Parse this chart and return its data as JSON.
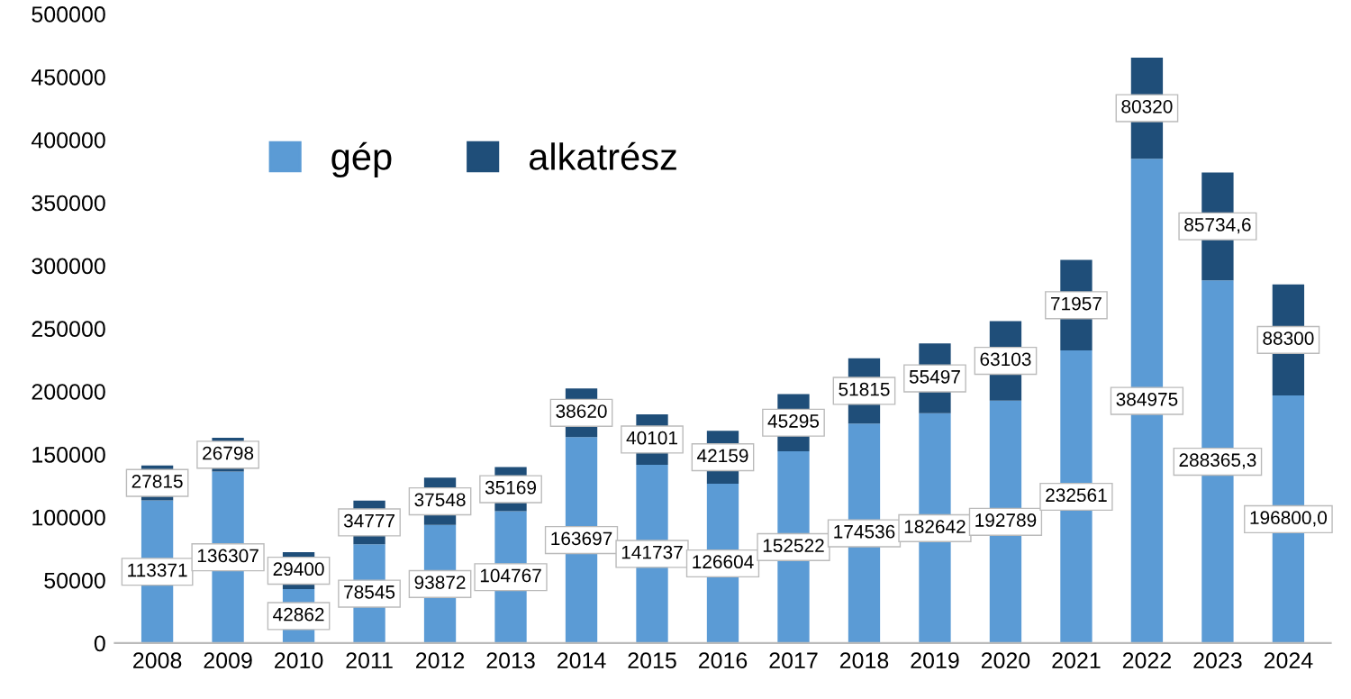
{
  "chart_data": {
    "type": "bar",
    "stacked": true,
    "categories": [
      "2008",
      "2009",
      "2010",
      "2011",
      "2012",
      "2013",
      "2014",
      "2015",
      "2016",
      "2017",
      "2018",
      "2019",
      "2020",
      "2021",
      "2022",
      "2023",
      "2024"
    ],
    "series": [
      {
        "name": "gép",
        "color": "#5b9bd5",
        "values": [
          113371,
          136307,
          42862,
          78545,
          93872,
          104767,
          163697,
          141737,
          126604,
          152522,
          174536,
          182642,
          192789,
          232561,
          384975,
          288365.3,
          196800.0
        ],
        "value_labels": [
          "113371",
          "136307",
          "42862",
          "78545",
          "93872",
          "104767",
          "163697",
          "141737",
          "126604",
          "152522",
          "174536",
          "182642",
          "192789",
          "232561",
          "384975",
          "288365,3",
          "196800,0"
        ]
      },
      {
        "name": "alkatrész",
        "color": "#1f4e79",
        "values": [
          27815,
          26798,
          29400,
          34777,
          37548,
          35169,
          38620,
          40101,
          42159,
          45295,
          51815,
          55497,
          63103,
          71957,
          80320,
          85734.6,
          88300
        ],
        "value_labels": [
          "27815",
          "26798",
          "29400",
          "34777",
          "37548",
          "35169",
          "38620",
          "40101",
          "42159",
          "45295",
          "51815",
          "55497",
          "63103",
          "71957",
          "80320",
          "85734,6",
          "88300"
        ]
      }
    ],
    "ylim": [
      0,
      500000
    ],
    "yticks": [
      0,
      50000,
      100000,
      150000,
      200000,
      250000,
      300000,
      350000,
      400000,
      450000,
      500000
    ],
    "grid": false,
    "legend": "top left"
  }
}
